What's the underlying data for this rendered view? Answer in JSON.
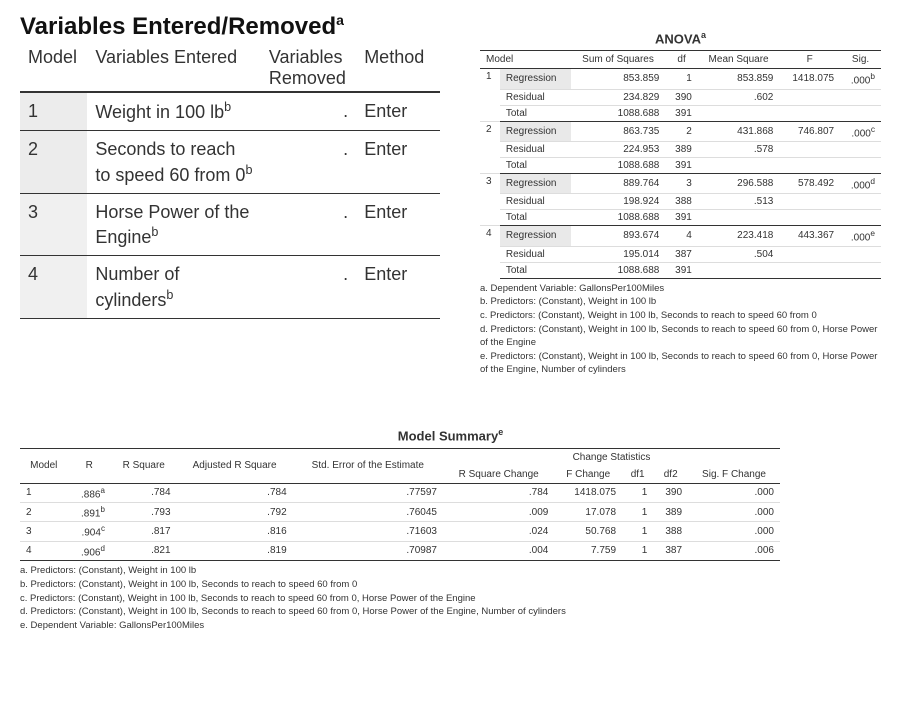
{
  "ver": {
    "title": "Variables Entered/Removed",
    "title_sup": "a",
    "headers": {
      "model": "Model",
      "entered": "Variables Entered",
      "removed": "Variables Removed",
      "method": "Method"
    },
    "rows": [
      {
        "model": "1",
        "entered": "Weight in 100 lb",
        "entered_sup": "b",
        "removed": ".",
        "method": "Enter"
      },
      {
        "model": "2",
        "entered": "Seconds to reach to speed 60 from 0",
        "entered_sup": "b",
        "removed": ".",
        "method": "Enter"
      },
      {
        "model": "3",
        "entered": "Horse Power of the Engine",
        "entered_sup": "b",
        "removed": ".",
        "method": "Enter"
      },
      {
        "model": "4",
        "entered": "Number of cylinders",
        "entered_sup": "b",
        "removed": ".",
        "method": "Enter"
      }
    ]
  },
  "anova": {
    "title": "ANOVA",
    "title_sup": "a",
    "headers": {
      "model": "Model",
      "ss": "Sum of Squares",
      "df": "df",
      "ms": "Mean Square",
      "F": "F",
      "sig": "Sig."
    },
    "blocks": [
      {
        "model": "1",
        "rows": [
          {
            "lbl": "Regression",
            "ss": "853.859",
            "df": "1",
            "ms": "853.859",
            "F": "1418.075",
            "sig": ".000",
            "sig_sup": "b"
          },
          {
            "lbl": "Residual",
            "ss": "234.829",
            "df": "390",
            "ms": ".602",
            "F": "",
            "sig": ""
          },
          {
            "lbl": "Total",
            "ss": "1088.688",
            "df": "391",
            "ms": "",
            "F": "",
            "sig": ""
          }
        ]
      },
      {
        "model": "2",
        "rows": [
          {
            "lbl": "Regression",
            "ss": "863.735",
            "df": "2",
            "ms": "431.868",
            "F": "746.807",
            "sig": ".000",
            "sig_sup": "c"
          },
          {
            "lbl": "Residual",
            "ss": "224.953",
            "df": "389",
            "ms": ".578",
            "F": "",
            "sig": ""
          },
          {
            "lbl": "Total",
            "ss": "1088.688",
            "df": "391",
            "ms": "",
            "F": "",
            "sig": ""
          }
        ]
      },
      {
        "model": "3",
        "rows": [
          {
            "lbl": "Regression",
            "ss": "889.764",
            "df": "3",
            "ms": "296.588",
            "F": "578.492",
            "sig": ".000",
            "sig_sup": "d"
          },
          {
            "lbl": "Residual",
            "ss": "198.924",
            "df": "388",
            "ms": ".513",
            "F": "",
            "sig": ""
          },
          {
            "lbl": "Total",
            "ss": "1088.688",
            "df": "391",
            "ms": "",
            "F": "",
            "sig": ""
          }
        ]
      },
      {
        "model": "4",
        "rows": [
          {
            "lbl": "Regression",
            "ss": "893.674",
            "df": "4",
            "ms": "223.418",
            "F": "443.367",
            "sig": ".000",
            "sig_sup": "e"
          },
          {
            "lbl": "Residual",
            "ss": "195.014",
            "df": "387",
            "ms": ".504",
            "F": "",
            "sig": ""
          },
          {
            "lbl": "Total",
            "ss": "1088.688",
            "df": "391",
            "ms": "",
            "F": "",
            "sig": ""
          }
        ]
      }
    ],
    "footnotes": [
      "a. Dependent Variable: GallonsPer100Miles",
      "b. Predictors: (Constant), Weight in 100 lb",
      "c. Predictors: (Constant), Weight in 100 lb, Seconds to reach to speed 60 from 0",
      "d. Predictors: (Constant), Weight in 100 lb, Seconds to reach to speed 60 from 0, Horse Power of the Engine",
      "e. Predictors: (Constant), Weight in 100 lb, Seconds to reach to speed 60 from 0, Horse Power of the Engine, Number of cylinders"
    ]
  },
  "msum": {
    "title": "Model Summary",
    "title_sup": "e",
    "group_header": "Change Statistics",
    "headers": {
      "model": "Model",
      "R": "R",
      "R2": "R Square",
      "adjR2": "Adjusted R Square",
      "see": "Std. Error of the Estimate",
      "R2c": "R Square Change",
      "Fc": "F Change",
      "df1": "df1",
      "df2": "df2",
      "sigFc": "Sig. F Change"
    },
    "rows": [
      {
        "model": "1",
        "R": ".886",
        "R_sup": "a",
        "R2": ".784",
        "adjR2": ".784",
        "see": ".77597",
        "R2c": ".784",
        "Fc": "1418.075",
        "df1": "1",
        "df2": "390",
        "sigFc": ".000"
      },
      {
        "model": "2",
        "R": ".891",
        "R_sup": "b",
        "R2": ".793",
        "adjR2": ".792",
        "see": ".76045",
        "R2c": ".009",
        "Fc": "17.078",
        "df1": "1",
        "df2": "389",
        "sigFc": ".000"
      },
      {
        "model": "3",
        "R": ".904",
        "R_sup": "c",
        "R2": ".817",
        "adjR2": ".816",
        "see": ".71603",
        "R2c": ".024",
        "Fc": "50.768",
        "df1": "1",
        "df2": "388",
        "sigFc": ".000"
      },
      {
        "model": "4",
        "R": ".906",
        "R_sup": "d",
        "R2": ".821",
        "adjR2": ".819",
        "see": ".70987",
        "R2c": ".004",
        "Fc": "7.759",
        "df1": "1",
        "df2": "387",
        "sigFc": ".006"
      }
    ],
    "footnotes": [
      "a. Predictors: (Constant), Weight in 100 lb",
      "b. Predictors: (Constant), Weight in 100 lb, Seconds to reach to speed 60 from 0",
      "c. Predictors: (Constant), Weight in 100 lb, Seconds to reach to speed 60 from 0, Horse Power of the Engine",
      "d. Predictors: (Constant), Weight in 100 lb, Seconds to reach to speed 60 from 0, Horse Power of the Engine, Number of cylinders",
      "e. Dependent Variable: GallonsPer100Miles"
    ]
  },
  "colors": {
    "text": "#333333",
    "border": "#333333",
    "bg": "#ffffff",
    "shade": "#ececec"
  }
}
